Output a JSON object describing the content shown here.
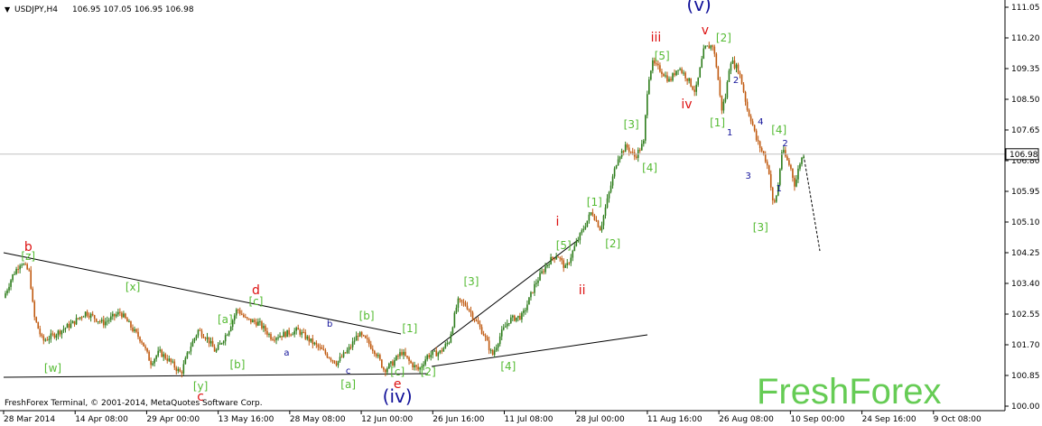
{
  "header": {
    "symbol": "USDJPY,H4",
    "ohlc": "106.95 107.05 106.95 106.98"
  },
  "footer": {
    "copyright": "FreshForex Terminal, © 2001-2014, MetaQuotes Software Corp.",
    "watermark": "FreshForex"
  },
  "colors": {
    "bull_candle": "#2e7d1c",
    "bear_candle": "#c05a10",
    "wave_green": "#55bb33",
    "wave_red": "#dd1111",
    "wave_blue": "#111199",
    "watermark": "#66cc55",
    "grid": "#c0c0c0"
  },
  "chart_data": {
    "type": "candlestick",
    "price_axis": {
      "labels": [
        "111.05",
        "110.20",
        "109.35",
        "108.50",
        "107.65",
        "106.80",
        "105.95",
        "105.10",
        "104.25",
        "103.40",
        "102.55",
        "101.70",
        "100.85",
        "100.00"
      ],
      "min": 100.0,
      "max": 111.05,
      "last_price": "106.98"
    },
    "time_axis": {
      "labels": [
        "28 Mar 2014",
        "14 Apr 08:00",
        "29 Apr 00:00",
        "13 May 16:00",
        "28 May 08:00",
        "12 Jun 00:00",
        "26 Jun 16:00",
        "11 Jul 08:00",
        "28 Jul 00:00",
        "11 Aug 16:00",
        "26 Aug 08:00",
        "10 Sep 00:00",
        "24 Sep 16:00",
        "9 Oct 08:00"
      ]
    },
    "price_path": [
      [
        0,
        103.0
      ],
      [
        2,
        103.6
      ],
      [
        4,
        104.0
      ],
      [
        6,
        103.7
      ],
      [
        7,
        102.5
      ],
      [
        9,
        101.8
      ],
      [
        12,
        102.0
      ],
      [
        16,
        102.3
      ],
      [
        19,
        102.6
      ],
      [
        23,
        102.3
      ],
      [
        27,
        102.6
      ],
      [
        30,
        102.1
      ],
      [
        32,
        101.8
      ],
      [
        34,
        101.2
      ],
      [
        36,
        101.5
      ],
      [
        38,
        101.3
      ],
      [
        41,
        100.9
      ],
      [
        43,
        101.6
      ],
      [
        45,
        102.1
      ],
      [
        47,
        101.9
      ],
      [
        49,
        101.5
      ],
      [
        52,
        102.1
      ],
      [
        54,
        102.7
      ],
      [
        56,
        102.4
      ],
      [
        59,
        102.3
      ],
      [
        62,
        101.9
      ],
      [
        65,
        102.0
      ],
      [
        68,
        102.1
      ],
      [
        71,
        101.8
      ],
      [
        74,
        101.5
      ],
      [
        77,
        101.2
      ],
      [
        80,
        101.6
      ],
      [
        82,
        102.0
      ],
      [
        84,
        101.8
      ],
      [
        86,
        101.5
      ],
      [
        88,
        101.0
      ],
      [
        90,
        101.2
      ],
      [
        92,
        101.5
      ],
      [
        94,
        101.2
      ],
      [
        96,
        101.0
      ],
      [
        98,
        101.4
      ],
      [
        101,
        101.5
      ],
      [
        103,
        101.8
      ],
      [
        105,
        102.9
      ],
      [
        107,
        102.8
      ],
      [
        109,
        102.4
      ],
      [
        111,
        102.0
      ],
      [
        113,
        101.4
      ],
      [
        115,
        102.0
      ],
      [
        117,
        102.4
      ],
      [
        120,
        102.5
      ],
      [
        123,
        103.4
      ],
      [
        126,
        104.0
      ],
      [
        128,
        104.2
      ],
      [
        130,
        103.8
      ],
      [
        132,
        104.4
      ],
      [
        134,
        104.9
      ],
      [
        136,
        105.4
      ],
      [
        138,
        104.9
      ],
      [
        140,
        105.9
      ],
      [
        142,
        106.9
      ],
      [
        144,
        107.2
      ],
      [
        146,
        106.9
      ],
      [
        148,
        107.3
      ],
      [
        149,
        109.0
      ],
      [
        150,
        109.5
      ],
      [
        152,
        109.3
      ],
      [
        154,
        109.0
      ],
      [
        156,
        109.4
      ],
      [
        158,
        109.1
      ],
      [
        160,
        108.7
      ],
      [
        162,
        109.9
      ],
      [
        164,
        110.0
      ],
      [
        165,
        109.3
      ],
      [
        166,
        108.2
      ],
      [
        167,
        108.6
      ],
      [
        168,
        109.6
      ],
      [
        170,
        109.3
      ],
      [
        171,
        108.8
      ],
      [
        172,
        108.2
      ],
      [
        173,
        107.9
      ],
      [
        174,
        107.4
      ],
      [
        176,
        106.9
      ],
      [
        177,
        106.5
      ],
      [
        178,
        105.5
      ],
      [
        179,
        106.0
      ],
      [
        180,
        107.1
      ],
      [
        182,
        106.6
      ],
      [
        183,
        106.1
      ],
      [
        184,
        106.7
      ],
      [
        185,
        106.98
      ]
    ],
    "wave_labels": [
      {
        "text": "b",
        "color": "red",
        "t": 4,
        "p": 104.3
      },
      {
        "text": "[z]",
        "color": "green",
        "t": 4,
        "p": 104.05
      },
      {
        "text": "[w]",
        "color": "green",
        "t": 8,
        "p": 100.95
      },
      {
        "text": "[x]",
        "color": "green",
        "t": 21,
        "p": 103.2
      },
      {
        "text": "[y]",
        "color": "green",
        "t": 32,
        "p": 100.45
      },
      {
        "text": "c",
        "color": "red",
        "t": 32,
        "p": 100.15
      },
      {
        "text": "[a]",
        "color": "green",
        "t": 36,
        "p": 102.3
      },
      {
        "text": "[b]",
        "color": "green",
        "t": 38,
        "p": 101.05
      },
      {
        "text": "d",
        "color": "red",
        "t": 41,
        "p": 103.1
      },
      {
        "text": "[c]",
        "color": "green",
        "t": 41,
        "p": 102.8
      },
      {
        "text": "a",
        "color": "blue",
        "t": 46,
        "p": 101.4
      },
      {
        "text": "b",
        "color": "blue",
        "t": 53,
        "p": 102.2
      },
      {
        "text": "c",
        "color": "blue",
        "t": 56,
        "p": 100.9
      },
      {
        "text": "[a]",
        "color": "green",
        "t": 56,
        "p": 100.5
      },
      {
        "text": "[b]",
        "color": "green",
        "t": 59,
        "p": 102.4
      },
      {
        "text": "[c]",
        "color": "green",
        "t": 64,
        "p": 100.85
      },
      {
        "text": "e",
        "color": "red",
        "t": 64,
        "p": 100.5
      },
      {
        "text": "(iv)",
        "color": "blue",
        "t": 64,
        "p": 100.1
      },
      {
        "text": "[1]",
        "color": "green",
        "t": 66,
        "p": 102.05
      },
      {
        "text": "[2]",
        "color": "green",
        "t": 69,
        "p": 100.85
      },
      {
        "text": "[3]",
        "color": "green",
        "t": 76,
        "p": 103.35
      },
      {
        "text": "[4]",
        "color": "green",
        "t": 82,
        "p": 101.0
      },
      {
        "text": "i",
        "color": "red",
        "t": 90,
        "p": 105.0
      },
      {
        "text": "[5]",
        "color": "green",
        "t": 91,
        "p": 104.35
      },
      {
        "text": "ii",
        "color": "red",
        "t": 94,
        "p": 103.1
      },
      {
        "text": "[1]",
        "color": "green",
        "t": 96,
        "p": 105.55
      },
      {
        "text": "[2]",
        "color": "green",
        "t": 99,
        "p": 104.4
      },
      {
        "text": "[3]",
        "color": "green",
        "t": 102,
        "p": 107.7
      },
      {
        "text": "[4]",
        "color": "green",
        "t": 105,
        "p": 106.5
      },
      {
        "text": "[5]",
        "color": "green",
        "t": 107,
        "p": 109.6
      },
      {
        "text": "iii",
        "color": "red",
        "t": 106,
        "p": 110.1
      },
      {
        "text": "iv",
        "color": "red",
        "t": 111,
        "p": 108.25
      },
      {
        "text": "(v)",
        "color": "blue",
        "t": 113,
        "p": 110.95
      },
      {
        "text": "v",
        "color": "red",
        "t": 114,
        "p": 110.3
      },
      {
        "text": "[2]",
        "color": "green",
        "t": 117,
        "p": 110.1
      },
      {
        "text": "[1]",
        "color": "green",
        "t": 116,
        "p": 107.75
      },
      {
        "text": "2",
        "color": "blue",
        "t": 119,
        "p": 108.95
      },
      {
        "text": "1",
        "color": "blue",
        "t": 118,
        "p": 107.5
      },
      {
        "text": "4",
        "color": "blue",
        "t": 123,
        "p": 107.8
      },
      {
        "text": "3",
        "color": "blue",
        "t": 121,
        "p": 106.3
      },
      {
        "text": "[4]",
        "color": "green",
        "t": 126,
        "p": 107.55
      },
      {
        "text": "2",
        "color": "blue",
        "t": 127,
        "p": 107.2
      },
      {
        "text": "1",
        "color": "blue",
        "t": 126,
        "p": 105.95
      },
      {
        "text": "[3]",
        "color": "green",
        "t": 123,
        "p": 104.85
      }
    ]
  }
}
